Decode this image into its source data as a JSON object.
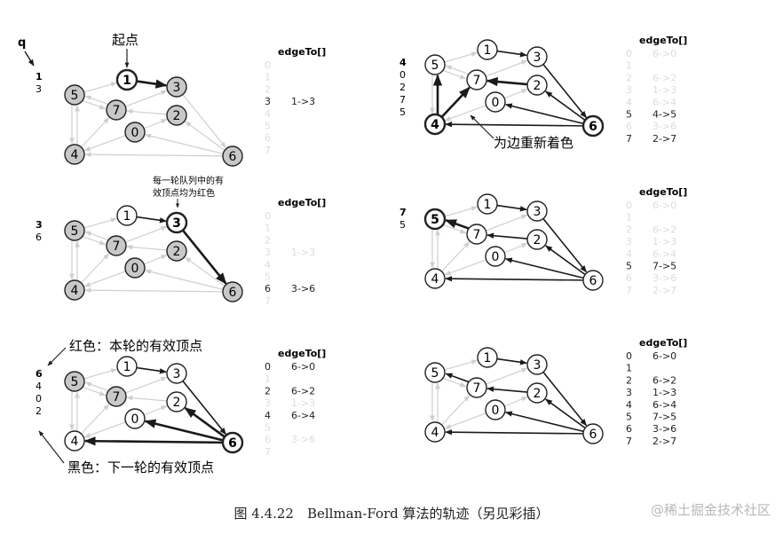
{
  "caption": "图 4.4.22　Bellman-Ford 算法的轨迹（另见彩插）",
  "watermark": "@稀土掘金技术社区",
  "edgeTo_label": "edgeTo[]",
  "annotations": {
    "queue_label": "q",
    "source_label": "起点",
    "active_note_line1": "每一轮队列中的有",
    "active_note_line2": "效顶点均为红色",
    "red_legend": "红色：本轮的有效顶点",
    "black_legend": "黑色：下一轮的有效顶点",
    "recolor_note": "为边重新着色"
  },
  "graph_edges": [
    [
      4,
      5
    ],
    [
      5,
      4
    ],
    [
      4,
      7
    ],
    [
      5,
      7
    ],
    [
      7,
      5
    ],
    [
      5,
      1
    ],
    [
      0,
      4
    ],
    [
      0,
      2
    ],
    [
      7,
      3
    ],
    [
      1,
      3
    ],
    [
      2,
      7
    ],
    [
      6,
      2
    ],
    [
      3,
      6
    ],
    [
      6,
      0
    ],
    [
      6,
      4
    ]
  ],
  "colors": {
    "highlight_fill": "#c8c8c8",
    "faint_edge": "#cfcfcf",
    "dark": "#1a1a1a",
    "faint_text": "#dcdcdc"
  },
  "panels": [
    {
      "queue": [
        "1",
        "3"
      ],
      "highlighted": [
        5,
        7,
        2,
        0,
        4,
        3,
        6
      ],
      "bold_nodes": [
        1
      ],
      "tree_edges": [],
      "new_edges": [
        [
          1,
          3
        ]
      ],
      "edgeTo": [
        [
          "0",
          "",
          0
        ],
        [
          "1",
          "",
          0
        ],
        [
          "2",
          "",
          0
        ],
        [
          "3",
          "1->3",
          1
        ],
        [
          "4",
          "",
          0
        ],
        [
          "5",
          "",
          0
        ],
        [
          "6",
          "",
          0
        ],
        [
          "7",
          "",
          0
        ]
      ]
    },
    {
      "queue": [
        "3",
        "6"
      ],
      "highlighted": [
        5,
        7,
        0,
        2,
        4,
        6
      ],
      "bold_nodes": [
        3
      ],
      "tree_edges": [
        [
          1,
          3
        ]
      ],
      "new_edges": [
        [
          3,
          6
        ]
      ],
      "edgeTo": [
        [
          "0",
          "",
          0
        ],
        [
          "1",
          "",
          0
        ],
        [
          "2",
          "",
          0
        ],
        [
          "3",
          "1->3",
          0
        ],
        [
          "4",
          "",
          0
        ],
        [
          "5",
          "",
          0
        ],
        [
          "6",
          "3->6",
          1
        ],
        [
          "7",
          "",
          0
        ]
      ]
    },
    {
      "queue": [
        "6",
        "4",
        "0",
        "2"
      ],
      "highlighted": [
        5,
        7
      ],
      "bold_nodes": [
        6
      ],
      "tree_edges": [
        [
          1,
          3
        ],
        [
          3,
          6
        ]
      ],
      "new_edges": [
        [
          6,
          0
        ],
        [
          6,
          2
        ],
        [
          6,
          4
        ]
      ],
      "edgeTo": [
        [
          "0",
          "6->0",
          1
        ],
        [
          "1",
          "",
          0
        ],
        [
          "2",
          "6->2",
          1
        ],
        [
          "3",
          "1->3",
          0
        ],
        [
          "4",
          "6->4",
          1
        ],
        [
          "5",
          "",
          0
        ],
        [
          "6",
          "3->6",
          0
        ],
        [
          "7",
          "",
          0
        ]
      ]
    },
    {
      "queue": [
        "4",
        "0",
        "2",
        "7",
        "5"
      ],
      "highlighted": [],
      "bold_nodes": [
        4,
        6
      ],
      "tree_edges": [
        [
          1,
          3
        ],
        [
          3,
          6
        ],
        [
          6,
          0
        ],
        [
          6,
          2
        ],
        [
          6,
          4
        ]
      ],
      "new_edges": [
        [
          4,
          5
        ],
        [
          4,
          7
        ],
        [
          2,
          7
        ]
      ],
      "edgeTo": [
        [
          "0",
          "6->0",
          0
        ],
        [
          "1",
          "",
          0
        ],
        [
          "2",
          "6->2",
          0
        ],
        [
          "3",
          "1->3",
          0
        ],
        [
          "4",
          "6->4",
          0
        ],
        [
          "5",
          "4->5",
          1
        ],
        [
          "6",
          "3->6",
          0
        ],
        [
          "7",
          "2->7",
          1
        ]
      ]
    },
    {
      "queue": [
        "7",
        "5"
      ],
      "highlighted": [],
      "bold_nodes": [
        5
      ],
      "tree_edges": [
        [
          1,
          3
        ],
        [
          3,
          6
        ],
        [
          6,
          0
        ],
        [
          6,
          2
        ],
        [
          6,
          4
        ],
        [
          2,
          7
        ]
      ],
      "new_edges": [
        [
          7,
          5
        ]
      ],
      "edgeTo": [
        [
          "0",
          "6->0",
          0
        ],
        [
          "1",
          "",
          0
        ],
        [
          "2",
          "6->2",
          0
        ],
        [
          "3",
          "1->3",
          0
        ],
        [
          "4",
          "6->4",
          0
        ],
        [
          "5",
          "7->5",
          1
        ],
        [
          "6",
          "3->6",
          0
        ],
        [
          "7",
          "2->7",
          0
        ]
      ]
    },
    {
      "queue": [],
      "highlighted": [],
      "bold_nodes": [],
      "tree_edges": [
        [
          1,
          3
        ],
        [
          3,
          6
        ],
        [
          6,
          0
        ],
        [
          6,
          2
        ],
        [
          6,
          4
        ],
        [
          2,
          7
        ],
        [
          7,
          5
        ]
      ],
      "new_edges": [],
      "edgeTo": [
        [
          "0",
          "6->0",
          1
        ],
        [
          "1",
          "",
          1
        ],
        [
          "2",
          "6->2",
          1
        ],
        [
          "3",
          "1->3",
          1
        ],
        [
          "4",
          "6->4",
          1
        ],
        [
          "5",
          "7->5",
          1
        ],
        [
          "6",
          "3->6",
          1
        ],
        [
          "7",
          "2->7",
          1
        ]
      ]
    }
  ]
}
